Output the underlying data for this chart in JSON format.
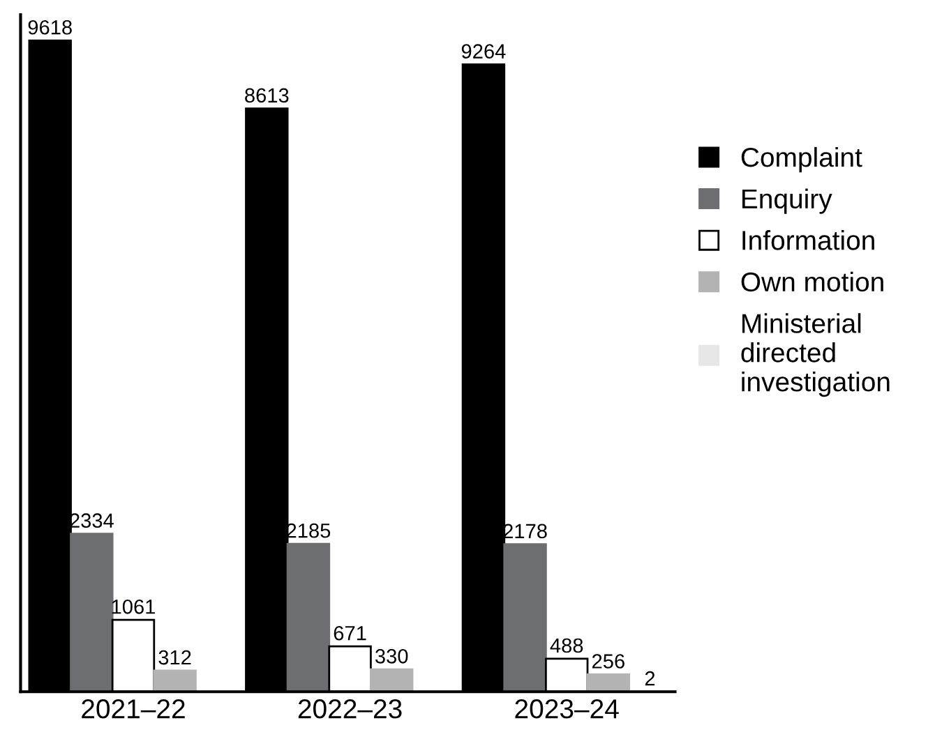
{
  "chart_data": {
    "type": "bar",
    "categories": [
      "2021–22",
      "2022–23",
      "2023–24"
    ],
    "series": [
      {
        "name": "Complaint",
        "color": "#000000",
        "values": [
          9618,
          8613,
          9264
        ]
      },
      {
        "name": "Enquiry",
        "color": "#6d6e71",
        "values": [
          2334,
          2185,
          2178
        ]
      },
      {
        "name": "Information",
        "color": "#ffffff",
        "values": [
          1061,
          671,
          488
        ]
      },
      {
        "name": "Own motion",
        "color": "#b3b3b3",
        "values": [
          312,
          330,
          256
        ]
      },
      {
        "name": "Ministerial\ndirected\ninvestigation",
        "color": "#e6e6e6",
        "values": [
          null,
          null,
          2
        ]
      }
    ],
    "ylim": [
      0,
      10000
    ],
    "data_labels": true,
    "legend": "right",
    "grid": false,
    "tick_labels": "x"
  }
}
